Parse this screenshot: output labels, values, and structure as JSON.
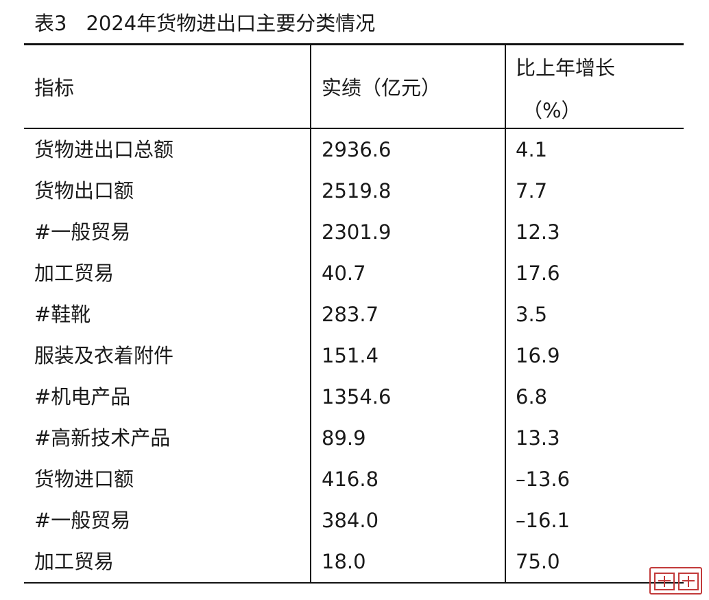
{
  "caption": {
    "number": "表3",
    "title": "2024年货物进出口主要分类情况"
  },
  "table": {
    "headers": {
      "col1": "指标",
      "col2": "实绩（亿元）",
      "col3_line1": "比上年增长",
      "col3_line2": "（%）"
    },
    "rows": [
      {
        "name": "货物进出口总额",
        "value": "2936.6",
        "growth": "4.1"
      },
      {
        "name": "货物出口额",
        "value": "2519.8",
        "growth": "7.7"
      },
      {
        "name": "#一般贸易",
        "value": "2301.9",
        "growth": "12.3"
      },
      {
        "name": "加工贸易",
        "value": "40.7",
        "growth": "17.6"
      },
      {
        "name": "#鞋靴",
        "value": "283.7",
        "growth": "3.5"
      },
      {
        "name": "服装及衣着附件",
        "value": "151.4",
        "growth": "16.9"
      },
      {
        "name": "#机电产品",
        "value": "1354.6",
        "growth": "6.8"
      },
      {
        "name": "#高新技术产品",
        "value": "89.9",
        "growth": "13.3"
      },
      {
        "name": "货物进口额",
        "value": "416.8",
        "growth": "–13.6"
      },
      {
        "name": "#一般贸易",
        "value": "384.0",
        "growth": "–16.1"
      },
      {
        "name": "加工贸易",
        "value": "18.0",
        "growth": "75.0"
      }
    ]
  },
  "watermark": {
    "icon": "seal-stamp-icon",
    "color": "#c23a3a"
  }
}
